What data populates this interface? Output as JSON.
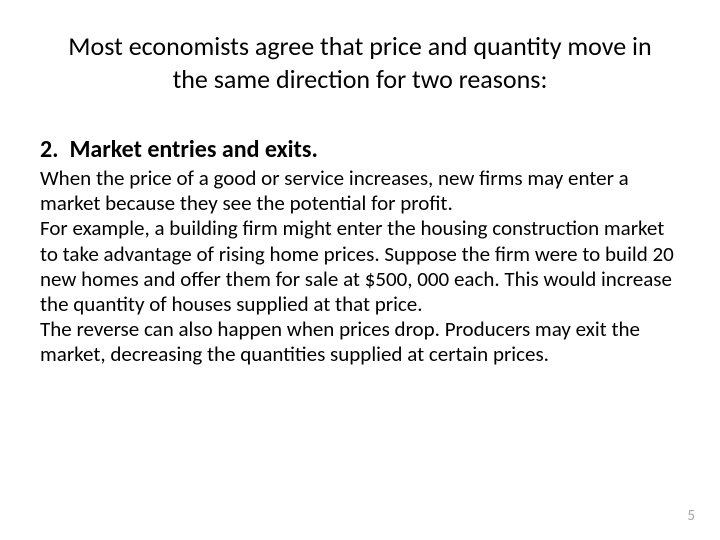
{
  "title": "Most economists agree that price and quantity move in the same direction for two reasons:",
  "section": {
    "number": "2.",
    "heading": "Market entries and exits."
  },
  "paragraphs": [
    "When the price of a good or service increases, new firms may enter a market because they see the potential for profit.",
    "For example, a building firm might enter the housing construction market to take advantage of rising home prices. Suppose the firm were to build 20 new homes and offer them for sale at $500, 000 each. This would increase the quantity of houses supplied at that price.",
    "The reverse can also happen when prices drop. Producers may exit the market, decreasing the quantities supplied at certain prices."
  ],
  "pageNumber": "5",
  "colors": {
    "text": "#000000",
    "background": "#ffffff",
    "pageNumber": "#a6a6a6"
  },
  "typography": {
    "fontFamily": "Calibri",
    "titleFontSize": 26,
    "headingFontSize": 24,
    "bodyFontSize": 21,
    "pageNumFontSize": 15
  }
}
